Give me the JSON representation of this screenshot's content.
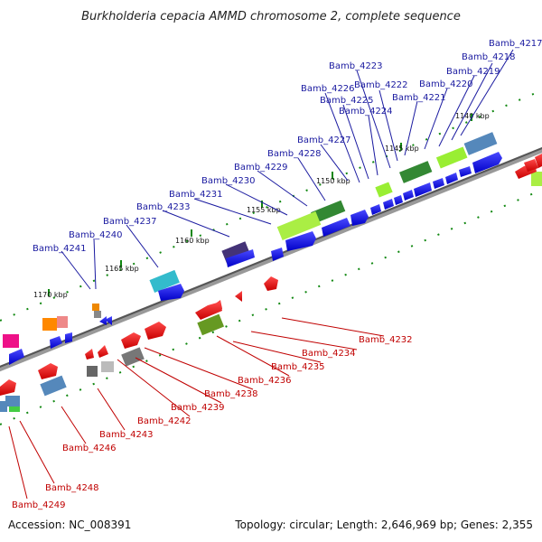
{
  "title": "Burkholderia cepacia AMMD chromosome 2, complete sequence",
  "footer": {
    "accession": "Accession: NC_008391",
    "summary": "Topology: circular; Length: 2,646,969 bp; Genes: 2,355"
  },
  "ticks": [
    "1140 kbp",
    "1145 kbp",
    "1150 kbp",
    "1155 kbp",
    "1160 kbp",
    "1165 kbp",
    "1170 kbp"
  ],
  "labels_top": [
    "Bamb_4217",
    "Bamb_4218",
    "Bamb_4219",
    "Bamb_4220",
    "Bamb_4221",
    "Bamb_4222",
    "Bamb_4223",
    "Bamb_4224",
    "Bamb_4225",
    "Bamb_4226",
    "Bamb_4227",
    "Bamb_4228",
    "Bamb_4229",
    "Bamb_4230",
    "Bamb_4231",
    "Bamb_4233",
    "Bamb_4237",
    "Bamb_4240",
    "Bamb_4241"
  ],
  "labels_bottom": [
    "Bamb_4232",
    "Bamb_4234",
    "Bamb_4235",
    "Bamb_4236",
    "Bamb_4238",
    "Bamb_4239",
    "Bamb_4242",
    "Bamb_4243",
    "Bamb_4246",
    "Bamb_4248",
    "Bamb_4249"
  ],
  "colors": {
    "forward_cds": "#1111dd",
    "reverse_cds": "#ee1111",
    "top_label": "#1a1aa0",
    "bottom_label": "#c00000",
    "backbone": "#666666",
    "tick": "#118811"
  }
}
